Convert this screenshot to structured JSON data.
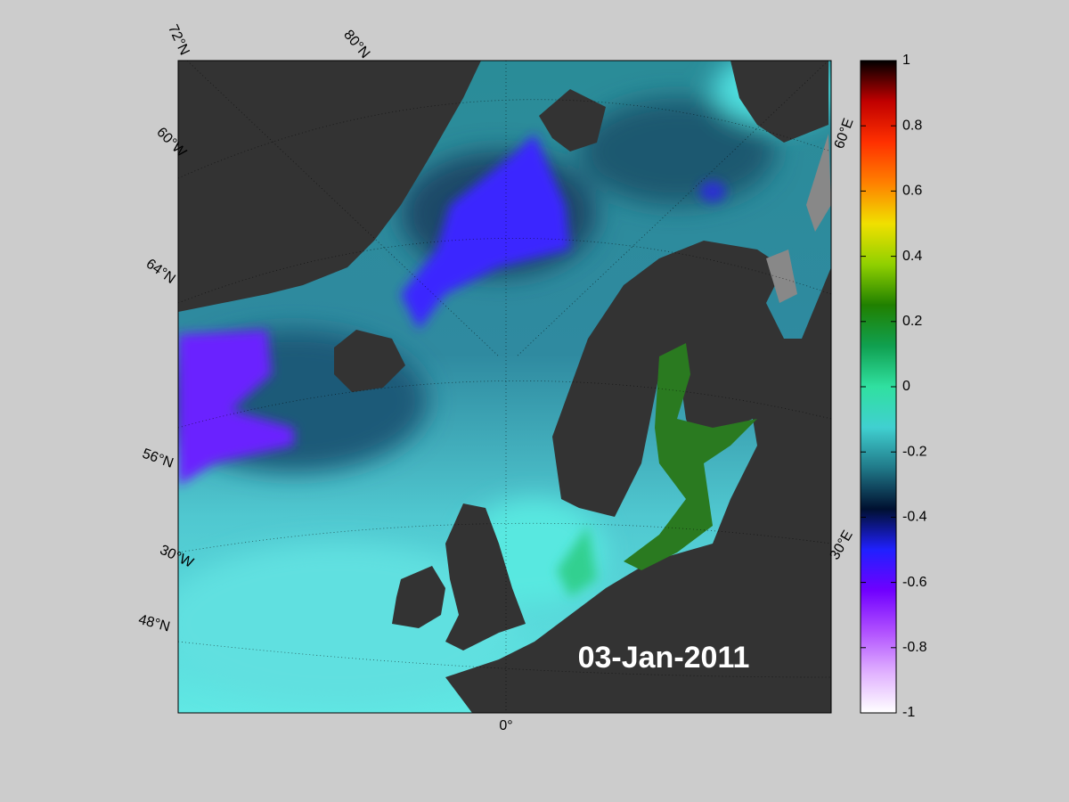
{
  "map": {
    "date_label": "03-Jan-2011",
    "graticule_labels": [
      "72°N",
      "80°N",
      "60°W",
      "64°N",
      "56°N",
      "30°W",
      "48°N",
      "0°",
      "30°E",
      "60°E"
    ]
  },
  "colorbar": {
    "lim": [
      -1,
      1
    ],
    "ticks": [
      -1,
      -0.8,
      -0.6,
      -0.4,
      -0.2,
      0,
      0.2,
      0.4,
      0.6,
      0.8,
      1
    ],
    "colors": [
      "#ffffff",
      "#e0b0ff",
      "#b050ff",
      "#7000ff",
      "#2020ff",
      "#001030",
      "#207888",
      "#40d0d0",
      "#30e0a0",
      "#10a050",
      "#208000",
      "#90d000",
      "#f0e000",
      "#ff8000",
      "#ff3000",
      "#c00000",
      "#000000"
    ]
  }
}
